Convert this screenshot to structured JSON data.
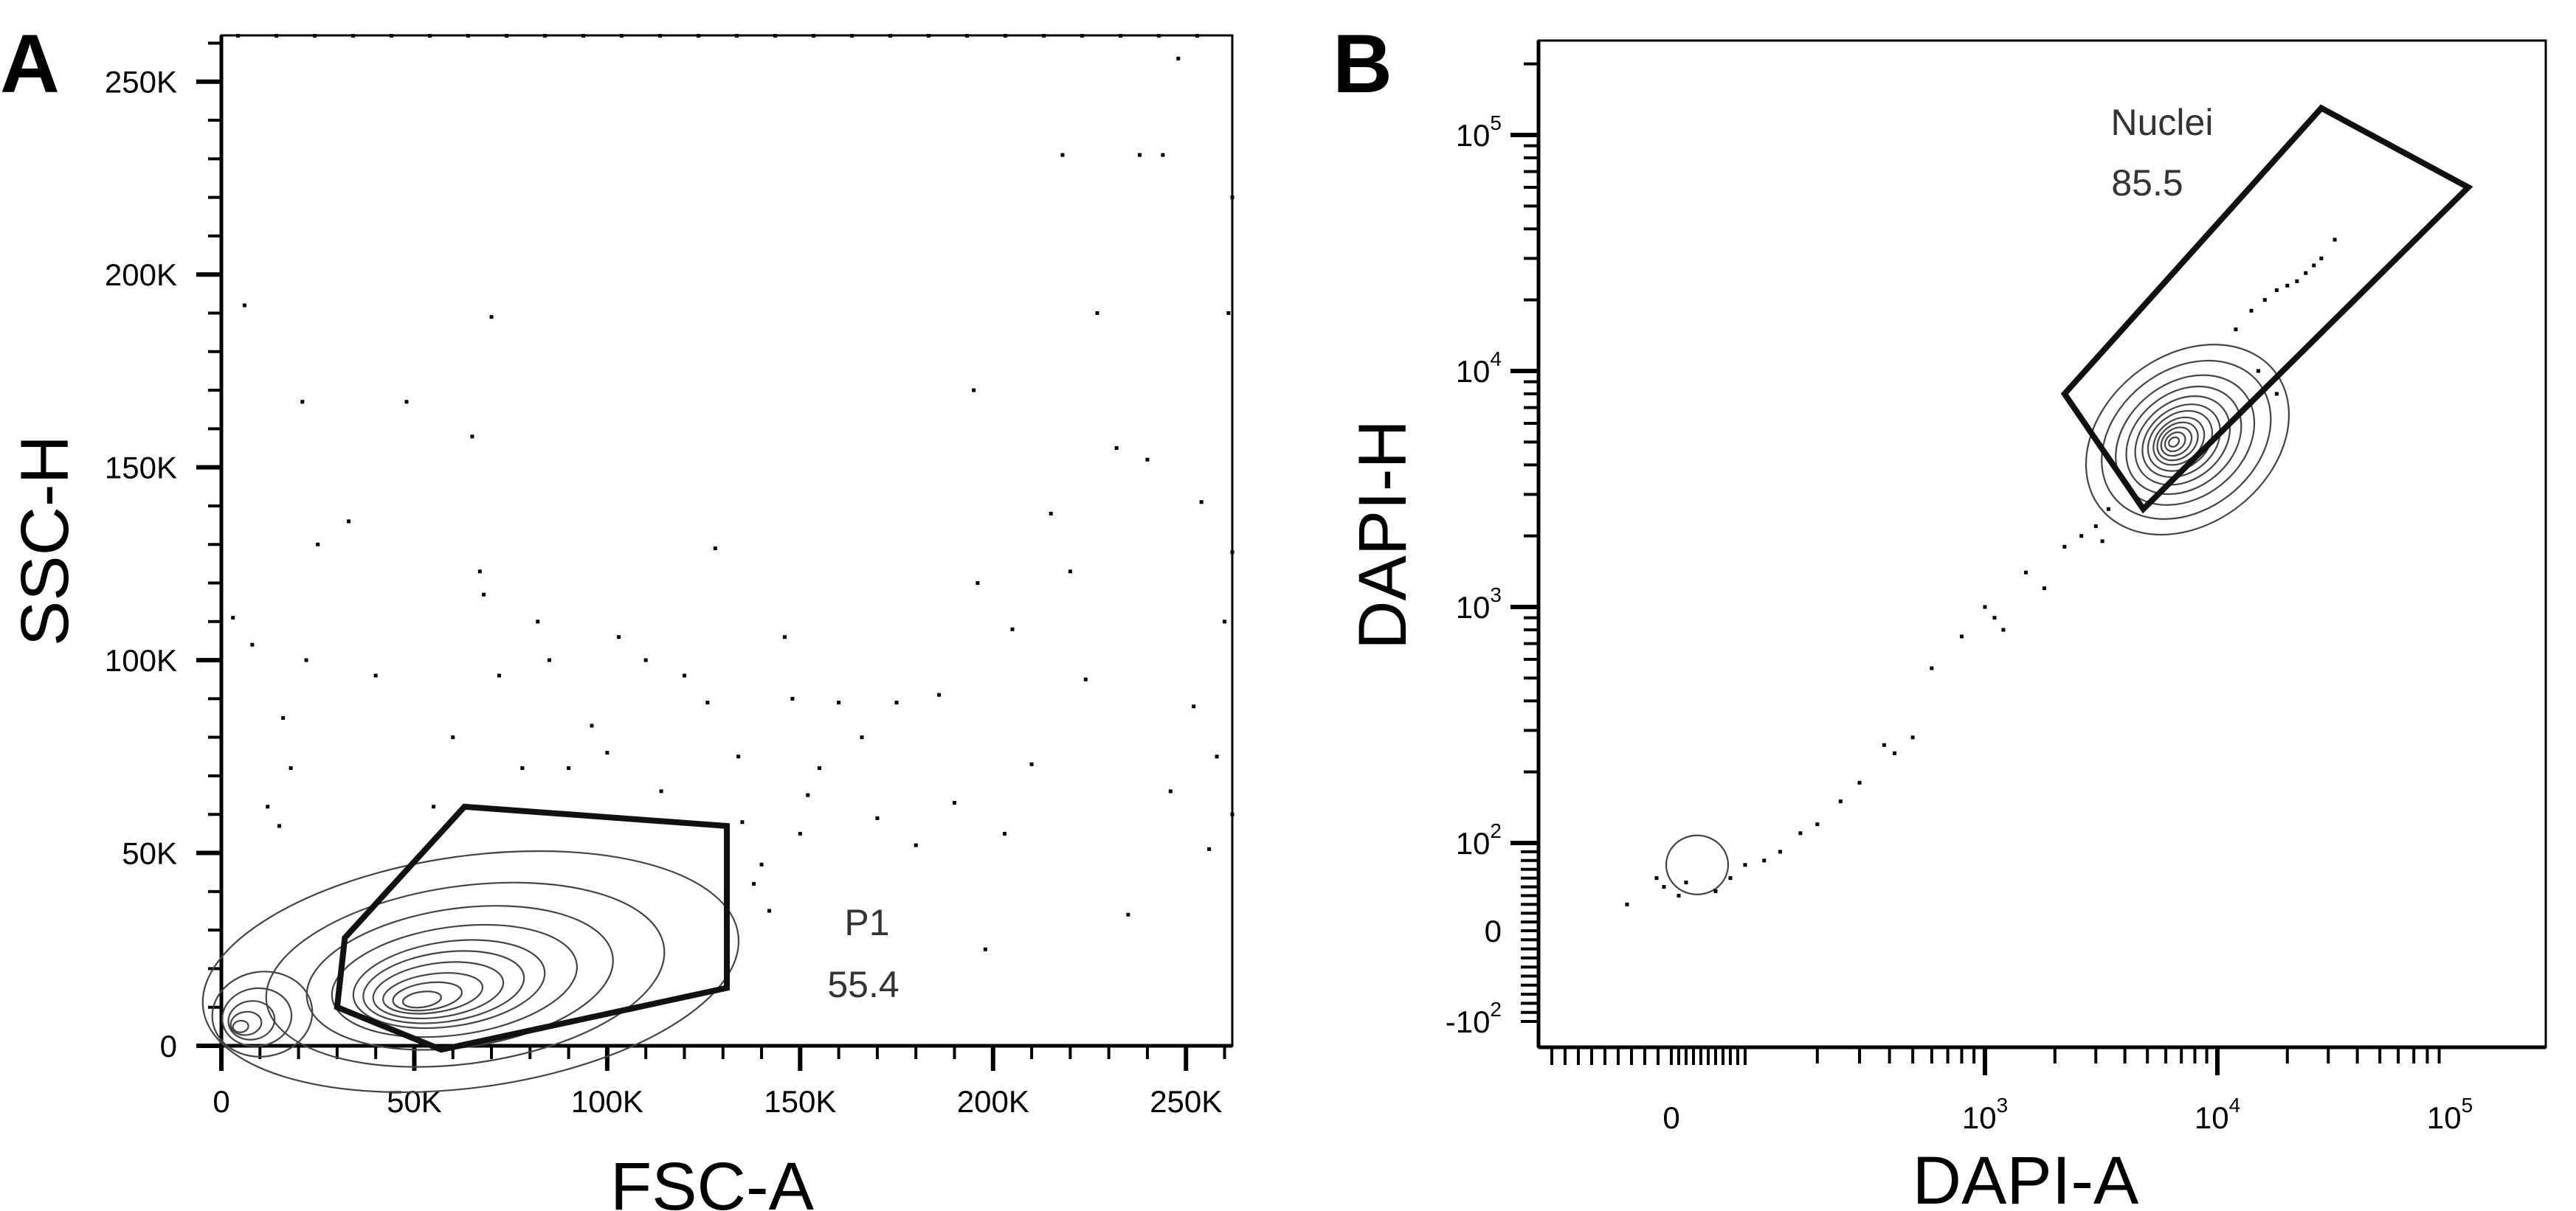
{
  "chart_data": [
    {
      "type": "scatter",
      "panel_label": "A",
      "xlabel": "FSC-A",
      "ylabel": "SSC-H",
      "xlim": [
        0,
        262000
      ],
      "ylim": [
        0,
        262000
      ],
      "x_ticks": [
        {
          "value": 0,
          "label": "0"
        },
        {
          "value": 50000,
          "label": "50K"
        },
        {
          "value": 100000,
          "label": "100K"
        },
        {
          "value": 150000,
          "label": "150K"
        },
        {
          "value": 200000,
          "label": "200K"
        },
        {
          "value": 250000,
          "label": "250K"
        }
      ],
      "y_ticks": [
        {
          "value": 0,
          "label": "0"
        },
        {
          "value": 50000,
          "label": "50K"
        },
        {
          "value": 100000,
          "label": "100K"
        },
        {
          "value": 150000,
          "label": "150K"
        },
        {
          "value": 200000,
          "label": "200K"
        },
        {
          "value": 250000,
          "label": "250K"
        }
      ],
      "gate": {
        "name": "P1",
        "percent": "55.4",
        "vertices": [
          [
            30000,
            10000
          ],
          [
            32000,
            28000
          ],
          [
            63000,
            62000
          ],
          [
            131000,
            57000
          ],
          [
            131000,
            15000
          ],
          [
            57000,
            -1000
          ]
        ]
      },
      "contour_centers": [
        {
          "x": 52000,
          "y": 12000,
          "rx": [
            5000,
            9000,
            13000,
            17000,
            21000,
            25000,
            32000,
            40000,
            52000,
            70000
          ],
          "ry": [
            2000,
            3500,
            5000,
            7000,
            9000,
            11000,
            14000,
            18000,
            23000,
            30000
          ]
        },
        {
          "x": 5000,
          "y": 5000,
          "rx": [
            2000,
            4000,
            6000,
            9000,
            13000
          ],
          "ry": [
            1500,
            3000,
            5000,
            7500,
            11000
          ]
        }
      ],
      "scatter_points": [
        [
          3000,
          111000
        ],
        [
          6000,
          192000
        ],
        [
          8000,
          104000
        ],
        [
          12000,
          62000
        ],
        [
          15000,
          57000
        ],
        [
          16000,
          85000
        ],
        [
          18000,
          72000
        ],
        [
          21000,
          167000
        ],
        [
          22000,
          100000
        ],
        [
          25000,
          130000
        ],
        [
          33000,
          136000
        ],
        [
          40000,
          96000
        ],
        [
          48000,
          167000
        ],
        [
          55000,
          62000
        ],
        [
          60000,
          80000
        ],
        [
          65000,
          158000
        ],
        [
          67000,
          123000
        ],
        [
          68000,
          117000
        ],
        [
          70000,
          189000
        ],
        [
          72000,
          96000
        ],
        [
          78000,
          72000
        ],
        [
          82000,
          110000
        ],
        [
          85000,
          100000
        ],
        [
          90000,
          72000
        ],
        [
          96000,
          83000
        ],
        [
          100000,
          76000
        ],
        [
          103000,
          106000
        ],
        [
          110000,
          100000
        ],
        [
          114000,
          66000
        ],
        [
          120000,
          96000
        ],
        [
          126000,
          89000
        ],
        [
          128000,
          129000
        ],
        [
          134000,
          75000
        ],
        [
          135000,
          58000
        ],
        [
          138000,
          42000
        ],
        [
          140000,
          47000
        ],
        [
          142000,
          35000
        ],
        [
          146000,
          106000
        ],
        [
          148000,
          90000
        ],
        [
          150000,
          55000
        ],
        [
          152000,
          65000
        ],
        [
          155000,
          72000
        ],
        [
          160000,
          89000
        ],
        [
          166000,
          80000
        ],
        [
          170000,
          59000
        ],
        [
          175000,
          89000
        ],
        [
          180000,
          52000
        ],
        [
          186000,
          91000
        ],
        [
          190000,
          63000
        ],
        [
          195000,
          170000
        ],
        [
          196000,
          120000
        ],
        [
          198000,
          25000
        ],
        [
          203000,
          55000
        ],
        [
          205000,
          108000
        ],
        [
          210000,
          73000
        ],
        [
          215000,
          138000
        ],
        [
          218000,
          231000
        ],
        [
          220000,
          123000
        ],
        [
          224000,
          95000
        ],
        [
          227000,
          190000
        ],
        [
          232000,
          155000
        ],
        [
          235000,
          34000
        ],
        [
          238000,
          231000
        ],
        [
          240000,
          152000
        ],
        [
          244000,
          231000
        ],
        [
          246000,
          66000
        ],
        [
          248000,
          256000
        ],
        [
          252000,
          88000
        ],
        [
          254000,
          141000
        ],
        [
          256000,
          51000
        ],
        [
          258000,
          75000
        ],
        [
          260000,
          110000
        ],
        [
          261000,
          190000
        ],
        [
          262000,
          220000
        ],
        [
          262000,
          128000
        ],
        [
          262000,
          60000
        ]
      ]
    },
    {
      "type": "scatter",
      "panel_label": "B",
      "xlabel": "DAPI-A",
      "ylabel": "DAPI-H",
      "xscale": "biexponential",
      "yscale": "biexponential",
      "x_ticks": [
        {
          "base": "0",
          "exp": ""
        },
        {
          "base": "10",
          "exp": "3"
        },
        {
          "base": "10",
          "exp": "4"
        },
        {
          "base": "10",
          "exp": "5"
        }
      ],
      "y_ticks": [
        {
          "base": "-10",
          "exp": "2"
        },
        {
          "base": "0",
          "exp": ""
        },
        {
          "base": "10",
          "exp": "2"
        },
        {
          "base": "10",
          "exp": "3"
        },
        {
          "base": "10",
          "exp": "4"
        },
        {
          "base": "10",
          "exp": "5"
        }
      ],
      "gate": {
        "name": "Nuclei",
        "percent": "85.5",
        "vertices": [
          [
            2200,
            8000
          ],
          [
            4800,
            2600
          ],
          [
            120000,
            60000
          ],
          [
            28000,
            130000
          ]
        ]
      },
      "main_cluster": {
        "x": 6500,
        "y": 5000
      },
      "debris_cluster": {
        "x": 35,
        "y": 75
      },
      "scatter_points": [
        [
          -60,
          30
        ],
        [
          -20,
          60
        ],
        [
          -10,
          50
        ],
        [
          10,
          40
        ],
        [
          20,
          55
        ],
        [
          60,
          45
        ],
        [
          80,
          60
        ],
        [
          100,
          75
        ],
        [
          120,
          80
        ],
        [
          140,
          90
        ],
        [
          170,
          110
        ],
        [
          200,
          120
        ],
        [
          250,
          150
        ],
        [
          300,
          180
        ],
        [
          380,
          260
        ],
        [
          420,
          240
        ],
        [
          500,
          280
        ],
        [
          600,
          550
        ],
        [
          800,
          750
        ],
        [
          1000,
          1000
        ],
        [
          1100,
          900
        ],
        [
          1200,
          800
        ],
        [
          1500,
          1400
        ],
        [
          1800,
          1200
        ],
        [
          2200,
          1800
        ],
        [
          2600,
          2000
        ],
        [
          3000,
          2200
        ],
        [
          3200,
          1900
        ],
        [
          3400,
          2600
        ],
        [
          12000,
          15000
        ],
        [
          14000,
          18000
        ],
        [
          16000,
          20000
        ],
        [
          18000,
          22000
        ],
        [
          20000,
          23000
        ],
        [
          22000,
          24000
        ],
        [
          24000,
          26000
        ],
        [
          26000,
          28000
        ],
        [
          28000,
          30000
        ],
        [
          32000,
          36000
        ],
        [
          15000,
          10000
        ],
        [
          18000,
          8000
        ]
      ]
    }
  ]
}
